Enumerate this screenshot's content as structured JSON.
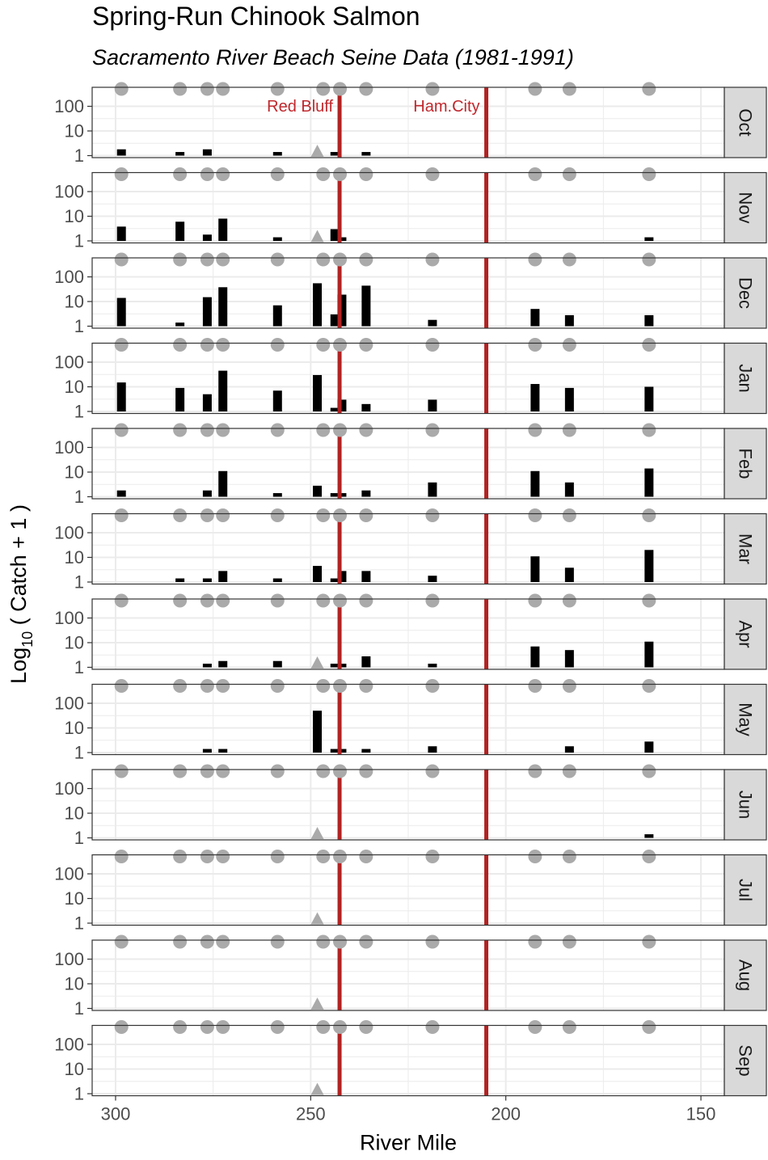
{
  "chart_data": {
    "type": "bar",
    "title": "Spring-Run Chinook Salmon",
    "subtitle": "Sacramento River Beach Seine Data (1981-1991)",
    "xlabel": "River Mile",
    "ylabel_main": "Log",
    "ylabel_sub": "10",
    "ylabel_rest": " ( Catch + 1 )",
    "xlim": [
      306,
      144
    ],
    "x_ticks": [
      300,
      250,
      200,
      150
    ],
    "y_scale": "log10",
    "y_ticks": [
      1,
      10,
      100
    ],
    "grid": true,
    "facet_strip_position": "right",
    "colors": {
      "bars": "#000000",
      "reference_lines": "#b22222",
      "reference_labels": "#c0282d",
      "site_markers": "#aaaaaa",
      "grid": "#ebebeb",
      "strip_fill": "#d9d9d9"
    },
    "reference_lines": [
      {
        "x": 242.6,
        "label": "Red Bluff"
      },
      {
        "x": 205.0,
        "label": "Ham.City"
      }
    ],
    "site_markers_x": [
      298.5,
      283.5,
      276.5,
      272.5,
      258.5,
      246.8,
      242.5,
      235.8,
      218.8,
      192.5,
      183.7,
      163.3
    ],
    "months": [
      {
        "month": "Oct",
        "catch_plus_one": [
          [
            298.5,
            1.8
          ],
          [
            283.5,
            1.4
          ],
          [
            276.5,
            1.8
          ],
          [
            258.5,
            1.4
          ],
          [
            243.8,
            1.4
          ],
          [
            235.8,
            1.4
          ]
        ],
        "triangle_x": 248.3
      },
      {
        "month": "Nov",
        "catch_plus_one": [
          [
            298.5,
            3.8
          ],
          [
            283.5,
            6
          ],
          [
            276.5,
            1.8
          ],
          [
            272.5,
            8
          ],
          [
            258.5,
            1.4
          ],
          [
            243.8,
            3
          ],
          [
            242,
            1.4
          ],
          [
            163.3,
            1.4
          ]
        ],
        "triangle_x": 248.3
      },
      {
        "month": "Dec",
        "catch_plus_one": [
          [
            298.5,
            14
          ],
          [
            283.5,
            1.4
          ],
          [
            276.5,
            15
          ],
          [
            272.5,
            38
          ],
          [
            258.5,
            7
          ],
          [
            248.3,
            55
          ],
          [
            243.8,
            3
          ],
          [
            242,
            19
          ],
          [
            235.8,
            44
          ],
          [
            218.8,
            1.8
          ],
          [
            192.5,
            5
          ],
          [
            183.7,
            2.8
          ],
          [
            163.3,
            2.8
          ]
        ],
        "triangle_x": null
      },
      {
        "month": "Jan",
        "catch_plus_one": [
          [
            298.5,
            15
          ],
          [
            283.5,
            9
          ],
          [
            276.5,
            5
          ],
          [
            272.5,
            45
          ],
          [
            258.5,
            7
          ],
          [
            248.3,
            30
          ],
          [
            243.8,
            1.4
          ],
          [
            242,
            3
          ],
          [
            235.8,
            2
          ],
          [
            218.8,
            3
          ],
          [
            192.5,
            13
          ],
          [
            183.7,
            9
          ],
          [
            163.3,
            10
          ]
        ],
        "triangle_x": null
      },
      {
        "month": "Feb",
        "catch_plus_one": [
          [
            298.5,
            1.8
          ],
          [
            276.5,
            1.8
          ],
          [
            272.5,
            11
          ],
          [
            258.5,
            1.4
          ],
          [
            248.3,
            2.8
          ],
          [
            243.8,
            1.4
          ],
          [
            242,
            1.4
          ],
          [
            235.8,
            1.8
          ],
          [
            218.8,
            3.8
          ],
          [
            192.5,
            11
          ],
          [
            183.7,
            3.8
          ],
          [
            163.3,
            14
          ]
        ],
        "triangle_x": null
      },
      {
        "month": "Mar",
        "catch_plus_one": [
          [
            283.5,
            1.4
          ],
          [
            276.5,
            1.4
          ],
          [
            272.5,
            2.8
          ],
          [
            258.5,
            1.4
          ],
          [
            248.3,
            4.5
          ],
          [
            243.8,
            1.4
          ],
          [
            242,
            2.8
          ],
          [
            235.8,
            2.8
          ],
          [
            218.8,
            1.8
          ],
          [
            192.5,
            11
          ],
          [
            183.7,
            3.8
          ],
          [
            163.3,
            20
          ]
        ],
        "triangle_x": null
      },
      {
        "month": "Apr",
        "catch_plus_one": [
          [
            276.5,
            1.4
          ],
          [
            272.5,
            1.8
          ],
          [
            258.5,
            1.8
          ],
          [
            243.8,
            1.4
          ],
          [
            242,
            1.4
          ],
          [
            235.8,
            2.8
          ],
          [
            218.8,
            1.4
          ],
          [
            192.5,
            7
          ],
          [
            183.7,
            5
          ],
          [
            163.3,
            11
          ]
        ],
        "triangle_x": 248.3
      },
      {
        "month": "May",
        "catch_plus_one": [
          [
            276.5,
            1.4
          ],
          [
            272.5,
            1.4
          ],
          [
            248.3,
            50
          ],
          [
            243.8,
            1.4
          ],
          [
            242,
            1.4
          ],
          [
            235.8,
            1.4
          ],
          [
            218.8,
            1.8
          ],
          [
            183.7,
            1.8
          ],
          [
            163.3,
            2.8
          ]
        ],
        "triangle_x": null
      },
      {
        "month": "Jun",
        "catch_plus_one": [
          [
            163.3,
            1.4
          ]
        ],
        "triangle_x": 248.3
      },
      {
        "month": "Jul",
        "catch_plus_one": [],
        "triangle_x": 248.3
      },
      {
        "month": "Aug",
        "catch_plus_one": [],
        "triangle_x": 248.3
      },
      {
        "month": "Sep",
        "catch_plus_one": [],
        "triangle_x": 248.3
      }
    ]
  }
}
